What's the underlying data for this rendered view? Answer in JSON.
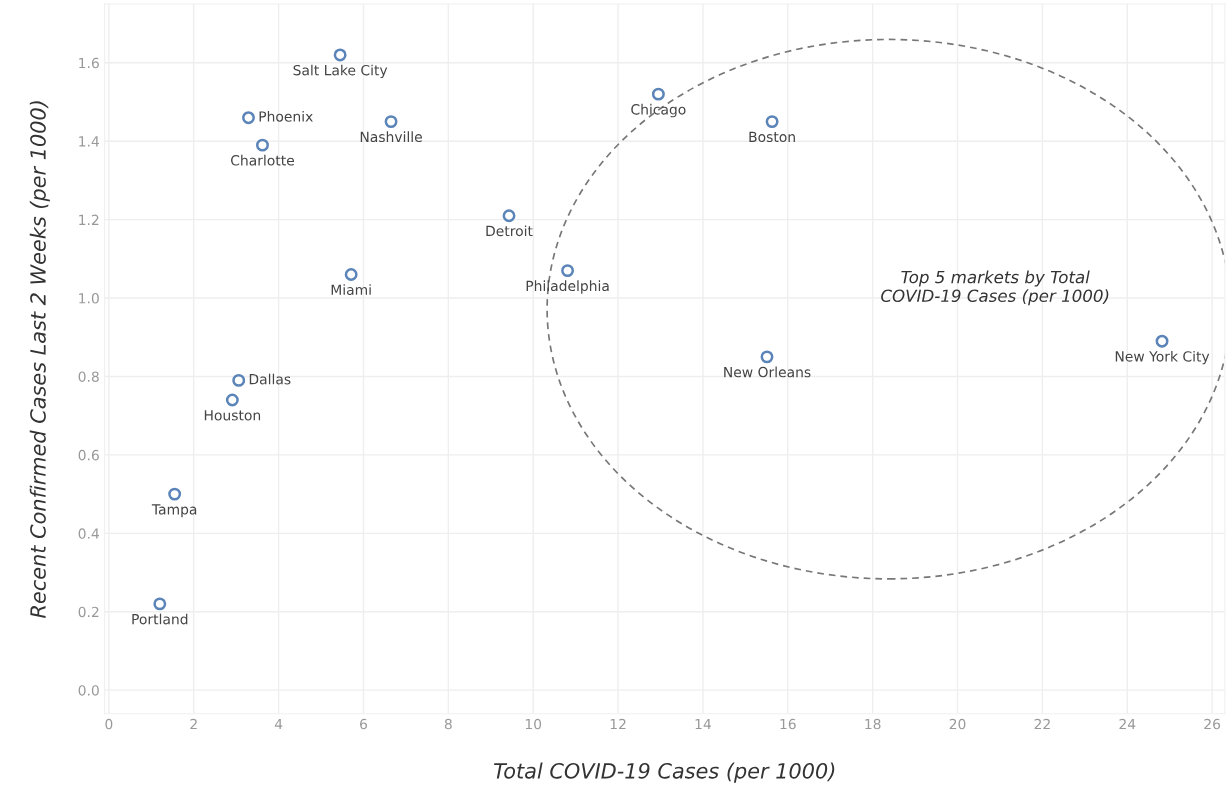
{
  "chart_data": {
    "type": "scatter",
    "xlabel": "Total COVID-19 Cases (per 1000)",
    "ylabel": "Recent Confirmed Cases Last 2 Weeks (per 1000)",
    "x": [
      5.45,
      3.29,
      3.62,
      6.65,
      12.95,
      15.63,
      9.43,
      5.71,
      10.81,
      15.51,
      24.82,
      3.06,
      2.91,
      1.55,
      1.2
    ],
    "series": [
      {
        "color": "#5b84b8",
        "values": [
          1.62,
          1.46,
          1.39,
          1.45,
          1.52,
          1.45,
          1.21,
          1.06,
          1.07,
          0.85,
          0.89,
          0.79,
          0.74,
          0.5,
          0.22
        ]
      }
    ],
    "marker": "circle",
    "grid": true,
    "xlim": [
      -0.1,
      26.3
    ],
    "ylim": [
      -0.06,
      1.75
    ],
    "xticks": [
      0,
      2,
      4,
      6,
      8,
      10,
      12,
      14,
      16,
      18,
      20,
      22,
      24,
      26
    ],
    "yticks": [
      {
        "value": 0,
        "label": "0.0"
      },
      {
        "value": 0.2,
        "label": "0.2"
      },
      {
        "value": 0.4,
        "label": "0.4"
      },
      {
        "value": 0.6,
        "label": "0.6"
      },
      {
        "value": 0.8,
        "label": "0.8"
      },
      {
        "value": 1.0,
        "label": "1.0"
      },
      {
        "value": 1.2,
        "label": "1.2"
      },
      {
        "value": 1.4,
        "label": "1.4"
      },
      {
        "value": 1.6,
        "label": "1.6"
      }
    ],
    "annotations": [
      {
        "text": "Salt Lake City",
        "x": 5.45,
        "y": 1.62
      },
      {
        "text": "Phoenix",
        "x": 3.29,
        "y": 1.46
      },
      {
        "text": "Charlotte",
        "x": 3.62,
        "y": 1.39
      },
      {
        "text": "Nashville",
        "x": 6.65,
        "y": 1.45
      },
      {
        "text": "Chicago",
        "x": 12.95,
        "y": 1.52
      },
      {
        "text": "Boston",
        "x": 15.63,
        "y": 1.45
      },
      {
        "text": "Detroit",
        "x": 9.43,
        "y": 1.21
      },
      {
        "text": "Miami",
        "x": 5.71,
        "y": 1.06
      },
      {
        "text": "Philadelphia",
        "x": 10.81,
        "y": 1.07
      },
      {
        "text": "New Orleans",
        "x": 15.51,
        "y": 0.85
      },
      {
        "text": "New York City",
        "x": 24.82,
        "y": 0.89
      },
      {
        "text": "Dallas",
        "x": 3.06,
        "y": 0.79
      },
      {
        "text": "Houston",
        "x": 2.91,
        "y": 0.74
      },
      {
        "text": "Tampa",
        "x": 1.55,
        "y": 0.5
      },
      {
        "text": "Portland",
        "x": 1.2,
        "y": 0.22
      },
      "Top 5 markets by Total COVID-19 Cases (per 1000)"
    ]
  }
}
